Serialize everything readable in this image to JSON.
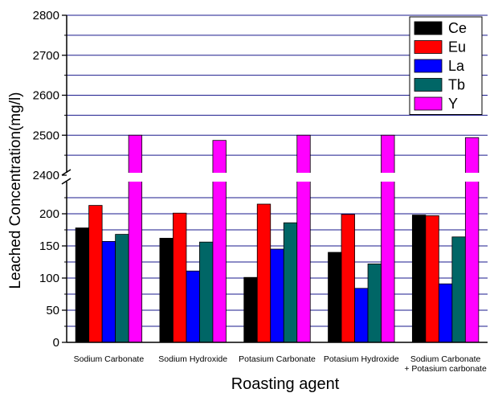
{
  "chart_data": {
    "type": "bar",
    "xlabel": "Roasting agent",
    "ylabel": "Leached Concentration(mg/l)",
    "categories": [
      [
        "Sodium Carbonate"
      ],
      [
        "Sodium Hydroxide"
      ],
      [
        "Potasium Carbonate"
      ],
      [
        "Potasium Hydroxide"
      ],
      [
        "Sodium Carbonate",
        "+ Potasium carbonate"
      ]
    ],
    "series": [
      {
        "name": "Ce",
        "color": "#000000",
        "values": [
          178,
          162,
          101,
          140,
          198
        ]
      },
      {
        "name": "Eu",
        "color": "#ff0000",
        "values": [
          213,
          201,
          215,
          199,
          197
        ]
      },
      {
        "name": "La",
        "color": "#0000ff",
        "values": [
          157,
          111,
          145,
          84,
          91
        ]
      },
      {
        "name": "Tb",
        "color": "#006666",
        "values": [
          168,
          156,
          186,
          122,
          164
        ]
      },
      {
        "name": "Y",
        "color": "#ff00ff",
        "values": [
          2500,
          2487,
          2500,
          2500,
          2494
        ]
      }
    ],
    "axis_break": {
      "lower_max": 230,
      "upper_min": 2400
    },
    "lower_ylim": [
      0,
      230
    ],
    "upper_ylim": [
      2400,
      2800
    ],
    "lower_ticks": [
      0,
      50,
      100,
      150,
      200
    ],
    "upper_ticks": [
      2400,
      2500,
      2600,
      2700,
      2800
    ],
    "grid": "horizontal",
    "grid_color": "#1a1a8c",
    "legend_position": "top-right"
  }
}
